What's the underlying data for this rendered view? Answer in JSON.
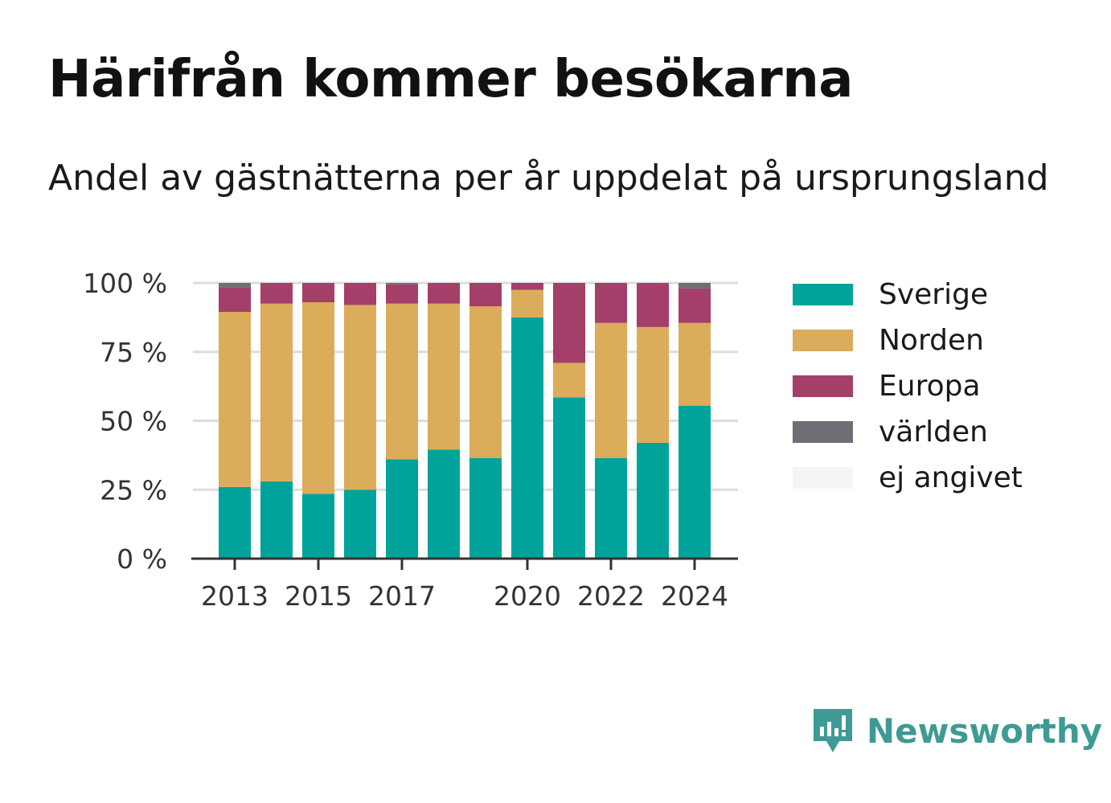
{
  "title": "Härifrån kommer besökarna",
  "subtitle": "Andel av gästnätterna per år uppdelat på ursprungsland",
  "brand": {
    "name": "Newsworthy",
    "icon": "newsworthy-logo-icon",
    "color": "#3e9a94"
  },
  "chart_data": {
    "type": "bar",
    "stacked": true,
    "categories": [
      "2013",
      "2014",
      "2015",
      "2016",
      "2017",
      "2018",
      "2019",
      "2020",
      "2021",
      "2022",
      "2023",
      "2024"
    ],
    "x_tick_labels": [
      "2013",
      "2015",
      "2017",
      "2020",
      "2022",
      "2024"
    ],
    "y_tick_labels": [
      "0 %",
      "25 %",
      "50 %",
      "75 %",
      "100 %"
    ],
    "y_ticks": [
      0,
      25,
      50,
      75,
      100
    ],
    "ylim": [
      0,
      100
    ],
    "grid": true,
    "legend_position": "right",
    "series": [
      {
        "name": "Sverige",
        "color": "#00a39a",
        "values": [
          26,
          28,
          23.5,
          25,
          36,
          39.5,
          36.5,
          87.5,
          58.5,
          36.5,
          42,
          55.5
        ]
      },
      {
        "name": "Norden",
        "color": "#dbac5a",
        "values": [
          63.5,
          64.5,
          69.5,
          67,
          56.5,
          53,
          55,
          10,
          12.5,
          49,
          42,
          30
        ]
      },
      {
        "name": "Europa",
        "color": "#a43f69",
        "values": [
          9,
          7.5,
          7,
          8,
          7,
          7.5,
          8.5,
          2.5,
          29,
          14.5,
          16,
          12.5
        ]
      },
      {
        "name": "världen",
        "color": "#6e6e74",
        "values": [
          1.5,
          0,
          0,
          0,
          0.5,
          0,
          0,
          0,
          0,
          0,
          0,
          2
        ]
      },
      {
        "name": "ej angivet",
        "color": "#f5f5f3",
        "values": [
          0,
          0,
          0,
          0,
          0,
          0,
          0,
          0,
          0,
          0,
          0,
          0
        ]
      }
    ]
  }
}
